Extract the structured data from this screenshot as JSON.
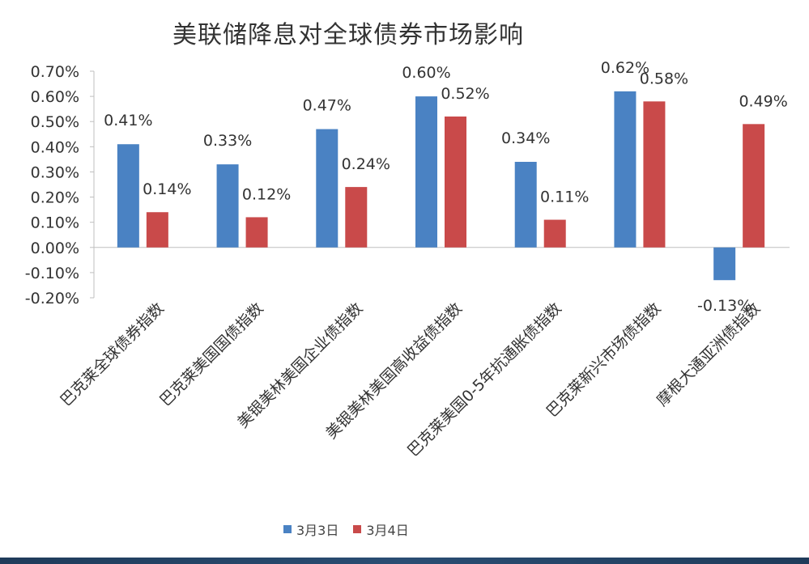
{
  "chart_data": {
    "type": "bar",
    "title": "美联储降息对全球债券市场影响",
    "categories": [
      "巴克莱全球债券指数",
      "巴克莱美国国债指数",
      "美银美林美国企业债指数",
      "美银美林美国高收益债指数",
      "巴克莱美国0-5年抗通胀债指数",
      "巴克莱新兴市场债指数",
      "摩根大通亚洲债指数"
    ],
    "series": [
      {
        "name": "3月3日",
        "color": "#4a82c3",
        "values": [
          0.41,
          0.33,
          0.47,
          0.6,
          0.34,
          0.62,
          -0.13
        ]
      },
      {
        "name": "3月4日",
        "color": "#c94a4a",
        "values": [
          0.14,
          0.12,
          0.24,
          0.52,
          0.11,
          0.58,
          0.49
        ]
      }
    ],
    "ylim": [
      -0.2,
      0.7
    ],
    "yticks": [
      "0.70%",
      "0.60%",
      "0.50%",
      "0.40%",
      "0.30%",
      "0.20%",
      "0.10%",
      "0.00%",
      "-0.10%",
      "-0.20%"
    ],
    "data_labels": [
      [
        "0.41%",
        "0.33%",
        "0.47%",
        "0.60%",
        "0.34%",
        "0.62%",
        "-0.13%"
      ],
      [
        "0.14%",
        "0.12%",
        "0.24%",
        "0.52%",
        "0.11%",
        "0.58%",
        "0.49%"
      ]
    ],
    "legend": "bottom",
    "grid": false
  }
}
